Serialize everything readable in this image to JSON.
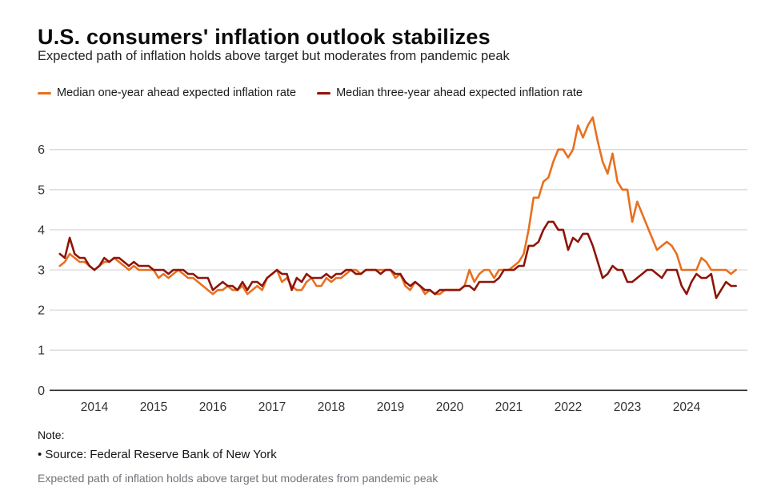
{
  "header": {
    "title": "U.S. consumers' inflation outlook stabilizes",
    "subtitle": "Expected path of inflation holds above target but moderates from pandemic peak"
  },
  "notes": {
    "label": "Note:",
    "source": "• Source: Federal Reserve Bank of New York",
    "caption": "Expected path of inflation holds above target but moderates from pandemic peak"
  },
  "chart_data": {
    "type": "line",
    "title": "U.S. consumers' inflation outlook stabilizes",
    "subtitle": "Expected path of inflation holds above target but moderates from pandemic peak",
    "x_unit": "month",
    "x_range": [
      "2013-06",
      "2024-11"
    ],
    "frequency": "monthly",
    "x_tick_labels": [
      "2014",
      "2015",
      "2016",
      "2017",
      "2018",
      "2019",
      "2020",
      "2021",
      "2022",
      "2023",
      "2024"
    ],
    "y_ticks": [
      0,
      1,
      2,
      3,
      4,
      5,
      6
    ],
    "ylim": [
      0,
      6.9
    ],
    "grid": "horizontal",
    "legend_position": "top",
    "colors": {
      "grid": "#d9d9d9",
      "axis": "#2b2b2b",
      "tick_text": "#333333"
    },
    "series": [
      {
        "name": "Median one-year ahead expected inflation rate",
        "color": "#e8701f",
        "values": [
          3.1,
          3.2,
          3.4,
          3.3,
          3.2,
          3.2,
          3.1,
          3.0,
          3.1,
          3.2,
          3.2,
          3.3,
          3.2,
          3.1,
          3.0,
          3.1,
          3.0,
          3.0,
          3.0,
          3.0,
          2.8,
          2.9,
          2.8,
          2.9,
          3.0,
          2.9,
          2.8,
          2.8,
          2.7,
          2.6,
          2.5,
          2.4,
          2.5,
          2.5,
          2.6,
          2.5,
          2.5,
          2.6,
          2.4,
          2.5,
          2.6,
          2.5,
          2.8,
          2.9,
          3.0,
          2.7,
          2.8,
          2.6,
          2.5,
          2.5,
          2.7,
          2.8,
          2.6,
          2.6,
          2.8,
          2.7,
          2.8,
          2.8,
          2.9,
          3.0,
          3.0,
          2.9,
          3.0,
          3.0,
          3.0,
          3.0,
          3.0,
          3.0,
          2.8,
          2.9,
          2.6,
          2.5,
          2.7,
          2.6,
          2.4,
          2.5,
          2.4,
          2.4,
          2.5,
          2.5,
          2.5,
          2.5,
          2.6,
          3.0,
          2.7,
          2.9,
          3.0,
          3.0,
          2.8,
          3.0,
          3.0,
          3.0,
          3.1,
          3.2,
          3.4,
          4.0,
          4.8,
          4.8,
          5.2,
          5.3,
          5.7,
          6.0,
          6.0,
          5.8,
          6.0,
          6.6,
          6.3,
          6.6,
          6.8,
          6.2,
          5.7,
          5.4,
          5.9,
          5.2,
          5.0,
          5.0,
          4.2,
          4.7,
          4.4,
          4.1,
          3.8,
          3.5,
          3.6,
          3.7,
          3.6,
          3.4,
          3.0,
          3.0,
          3.0,
          3.0,
          3.3,
          3.2,
          3.0,
          3.0,
          3.0,
          3.0,
          2.9,
          3.0
        ]
      },
      {
        "name": "Median three-year ahead expected inflation rate",
        "color": "#8e1409",
        "values": [
          3.4,
          3.3,
          3.8,
          3.4,
          3.3,
          3.3,
          3.1,
          3.0,
          3.1,
          3.3,
          3.2,
          3.3,
          3.3,
          3.2,
          3.1,
          3.2,
          3.1,
          3.1,
          3.1,
          3.0,
          3.0,
          3.0,
          2.9,
          3.0,
          3.0,
          3.0,
          2.9,
          2.9,
          2.8,
          2.8,
          2.8,
          2.5,
          2.6,
          2.7,
          2.6,
          2.6,
          2.5,
          2.7,
          2.5,
          2.7,
          2.7,
          2.6,
          2.8,
          2.9,
          3.0,
          2.9,
          2.9,
          2.5,
          2.8,
          2.7,
          2.9,
          2.8,
          2.8,
          2.8,
          2.9,
          2.8,
          2.9,
          2.9,
          3.0,
          3.0,
          2.9,
          2.9,
          3.0,
          3.0,
          3.0,
          2.9,
          3.0,
          3.0,
          2.9,
          2.9,
          2.7,
          2.6,
          2.7,
          2.6,
          2.5,
          2.5,
          2.4,
          2.5,
          2.5,
          2.5,
          2.5,
          2.5,
          2.6,
          2.6,
          2.5,
          2.7,
          2.7,
          2.7,
          2.7,
          2.8,
          3.0,
          3.0,
          3.0,
          3.1,
          3.1,
          3.6,
          3.6,
          3.7,
          4.0,
          4.2,
          4.2,
          4.0,
          4.0,
          3.5,
          3.8,
          3.7,
          3.9,
          3.9,
          3.6,
          3.2,
          2.8,
          2.9,
          3.1,
          3.0,
          3.0,
          2.7,
          2.7,
          2.8,
          2.9,
          3.0,
          3.0,
          2.9,
          2.8,
          3.0,
          3.0,
          3.0,
          2.6,
          2.4,
          2.7,
          2.9,
          2.8,
          2.8,
          2.9,
          2.3,
          2.5,
          2.7,
          2.6,
          2.6
        ]
      }
    ]
  }
}
